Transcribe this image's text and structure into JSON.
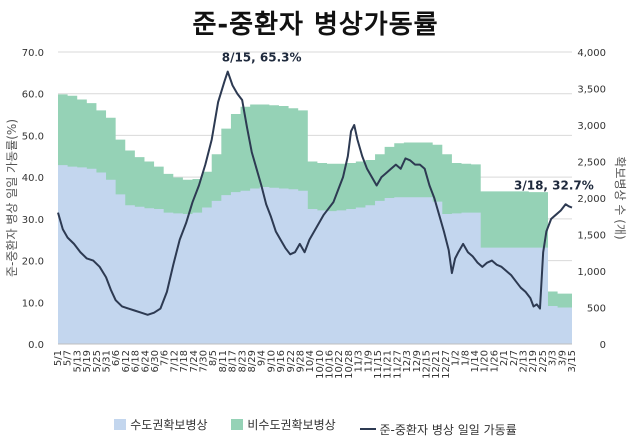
{
  "title": "준-중환자 병상가동률",
  "legend": {
    "capital": "수도권확보병상",
    "noncapital": "비수도권확보병상",
    "rate": "준-중환자 병상 일일 가동률"
  },
  "colors": {
    "capital": "#c3d6ee",
    "noncapital": "#95d2b6",
    "rate": "#2d3a52",
    "grid": "#d9d9d9"
  },
  "chart_data": {
    "type": "area",
    "title": "준-중환자 병상가동률",
    "ylabel_left": "준-중환자 병상 일일 가동률(%)",
    "ylabel_right": "확보병상 수 (개)",
    "ylim_left": [
      0,
      70
    ],
    "ylim_right": [
      0,
      4000
    ],
    "left_ticks": [
      "0.0",
      "10.0",
      "20.0",
      "30.0",
      "40.0",
      "50.0",
      "60.0",
      "70.0"
    ],
    "right_ticks": [
      "0",
      "500",
      "1,000",
      "1,500",
      "2,000",
      "2,500",
      "3,000",
      "3,500",
      "4,000"
    ],
    "x_labels": [
      "5/1",
      "5/7",
      "5/13",
      "5/19",
      "5/25",
      "5/31",
      "6/6",
      "6/12",
      "6/18",
      "6/24",
      "6/30",
      "7/6",
      "7/12",
      "7/18",
      "7/24",
      "7/30",
      "8/5",
      "8/11",
      "8/17",
      "8/23",
      "8/29",
      "9/4",
      "9/10",
      "9/16",
      "9/22",
      "9/28",
      "10/4",
      "10/10",
      "10/16",
      "10/22",
      "10/28",
      "11/3",
      "11/9",
      "11/15",
      "11/21",
      "11/27",
      "12/3",
      "12/9",
      "12/15",
      "12/21",
      "12/27",
      "1/2",
      "1/8",
      "1/14",
      "1/20",
      "1/26",
      "2/1",
      "2/7",
      "2/13",
      "2/19",
      "2/25",
      "3/3",
      "3/9",
      "3/15"
    ],
    "day_count": 321,
    "annotations": [
      {
        "label": "8/15, 65.3%",
        "day": 106,
        "value": 65.3
      },
      {
        "label": "3/18, 32.7%",
        "day": 321,
        "value": 32.7
      }
    ],
    "series": [
      {
        "name": "수도권확보병상",
        "axis": "right",
        "points": [
          [
            0,
            2450
          ],
          [
            6,
            2430
          ],
          [
            12,
            2420
          ],
          [
            18,
            2400
          ],
          [
            24,
            2350
          ],
          [
            30,
            2250
          ],
          [
            36,
            2050
          ],
          [
            42,
            1900
          ],
          [
            48,
            1880
          ],
          [
            54,
            1860
          ],
          [
            60,
            1850
          ],
          [
            66,
            1800
          ],
          [
            72,
            1790
          ],
          [
            78,
            1780
          ],
          [
            84,
            1800
          ],
          [
            90,
            1870
          ],
          [
            96,
            1960
          ],
          [
            102,
            2040
          ],
          [
            108,
            2080
          ],
          [
            114,
            2100
          ],
          [
            120,
            2130
          ],
          [
            126,
            2150
          ],
          [
            132,
            2140
          ],
          [
            138,
            2130
          ],
          [
            144,
            2120
          ],
          [
            150,
            2100
          ],
          [
            156,
            1850
          ],
          [
            162,
            1830
          ],
          [
            168,
            1820
          ],
          [
            174,
            1830
          ],
          [
            180,
            1850
          ],
          [
            186,
            1870
          ],
          [
            192,
            1900
          ],
          [
            198,
            1960
          ],
          [
            204,
            2000
          ],
          [
            210,
            2010
          ],
          [
            216,
            2010
          ],
          [
            222,
            2010
          ],
          [
            228,
            2010
          ],
          [
            234,
            1950
          ],
          [
            240,
            1780
          ],
          [
            246,
            1790
          ],
          [
            252,
            1800
          ],
          [
            258,
            1800
          ],
          [
            264,
            1320
          ],
          [
            270,
            1320
          ],
          [
            276,
            1320
          ],
          [
            282,
            1320
          ],
          [
            288,
            1320
          ],
          [
            294,
            1320
          ],
          [
            300,
            1320
          ],
          [
            304,
            1320
          ],
          [
            306,
            520
          ],
          [
            312,
            500
          ],
          [
            321,
            490
          ]
        ]
      },
      {
        "name": "비수도권확보병상",
        "axis": "right",
        "points": [
          [
            0,
            3420
          ],
          [
            6,
            3400
          ],
          [
            12,
            3350
          ],
          [
            18,
            3300
          ],
          [
            24,
            3200
          ],
          [
            30,
            3100
          ],
          [
            36,
            2800
          ],
          [
            42,
            2650
          ],
          [
            48,
            2560
          ],
          [
            54,
            2500
          ],
          [
            60,
            2430
          ],
          [
            66,
            2330
          ],
          [
            72,
            2280
          ],
          [
            78,
            2250
          ],
          [
            84,
            2260
          ],
          [
            90,
            2360
          ],
          [
            96,
            2600
          ],
          [
            102,
            2950
          ],
          [
            108,
            3150
          ],
          [
            114,
            3250
          ],
          [
            120,
            3280
          ],
          [
            126,
            3280
          ],
          [
            132,
            3270
          ],
          [
            138,
            3260
          ],
          [
            144,
            3230
          ],
          [
            150,
            3200
          ],
          [
            156,
            2500
          ],
          [
            162,
            2480
          ],
          [
            168,
            2470
          ],
          [
            174,
            2470
          ],
          [
            180,
            2480
          ],
          [
            186,
            2500
          ],
          [
            192,
            2520
          ],
          [
            198,
            2600
          ],
          [
            204,
            2700
          ],
          [
            210,
            2750
          ],
          [
            216,
            2760
          ],
          [
            222,
            2760
          ],
          [
            228,
            2760
          ],
          [
            234,
            2730
          ],
          [
            240,
            2600
          ],
          [
            246,
            2480
          ],
          [
            252,
            2470
          ],
          [
            258,
            2460
          ],
          [
            264,
            2090
          ],
          [
            270,
            2090
          ],
          [
            276,
            2090
          ],
          [
            282,
            2090
          ],
          [
            288,
            2090
          ],
          [
            294,
            2080
          ],
          [
            300,
            2080
          ],
          [
            304,
            2080
          ],
          [
            306,
            720
          ],
          [
            312,
            690
          ],
          [
            321,
            680
          ]
        ]
      },
      {
        "name": "준-중환자 병상 일일 가동률",
        "axis": "left",
        "points": [
          [
            0,
            31.5
          ],
          [
            3,
            27.5
          ],
          [
            6,
            25.5
          ],
          [
            10,
            24
          ],
          [
            14,
            22
          ],
          [
            18,
            20.5
          ],
          [
            22,
            20
          ],
          [
            26,
            18.5
          ],
          [
            30,
            16
          ],
          [
            33,
            13
          ],
          [
            36,
            10.5
          ],
          [
            40,
            9
          ],
          [
            44,
            8.5
          ],
          [
            48,
            8
          ],
          [
            52,
            7.5
          ],
          [
            56,
            7
          ],
          [
            60,
            7.5
          ],
          [
            64,
            8.5
          ],
          [
            68,
            12.5
          ],
          [
            72,
            19
          ],
          [
            76,
            25
          ],
          [
            80,
            29
          ],
          [
            84,
            34
          ],
          [
            88,
            38
          ],
          [
            92,
            43
          ],
          [
            96,
            49
          ],
          [
            100,
            58
          ],
          [
            104,
            63
          ],
          [
            106,
            65.3
          ],
          [
            109,
            62
          ],
          [
            112,
            60
          ],
          [
            115,
            58.5
          ],
          [
            118,
            52
          ],
          [
            121,
            46
          ],
          [
            124,
            42
          ],
          [
            127,
            38
          ],
          [
            130,
            33.5
          ],
          [
            133,
            30.5
          ],
          [
            136,
            27
          ],
          [
            139,
            25
          ],
          [
            142,
            23
          ],
          [
            145,
            21.5
          ],
          [
            148,
            22
          ],
          [
            151,
            24
          ],
          [
            154,
            22
          ],
          [
            157,
            25
          ],
          [
            160,
            27
          ],
          [
            163,
            29
          ],
          [
            166,
            31
          ],
          [
            169,
            32.5
          ],
          [
            172,
            34
          ],
          [
            175,
            37
          ],
          [
            178,
            40
          ],
          [
            181,
            45
          ],
          [
            183,
            51
          ],
          [
            185,
            52.5
          ],
          [
            187,
            49
          ],
          [
            190,
            45
          ],
          [
            193,
            42
          ],
          [
            196,
            40
          ],
          [
            199,
            38
          ],
          [
            202,
            40
          ],
          [
            205,
            41
          ],
          [
            208,
            42
          ],
          [
            211,
            43
          ],
          [
            214,
            42
          ],
          [
            217,
            44.5
          ],
          [
            220,
            44
          ],
          [
            223,
            43
          ],
          [
            226,
            43
          ],
          [
            229,
            42
          ],
          [
            232,
            38
          ],
          [
            235,
            35
          ],
          [
            238,
            31
          ],
          [
            241,
            27
          ],
          [
            244,
            22.5
          ],
          [
            246,
            17
          ],
          [
            248,
            20.5
          ],
          [
            250,
            22
          ],
          [
            253,
            24
          ],
          [
            256,
            22
          ],
          [
            259,
            21
          ],
          [
            262,
            19.5
          ],
          [
            265,
            18.5
          ],
          [
            268,
            19.5
          ],
          [
            271,
            20
          ],
          [
            274,
            19
          ],
          [
            277,
            18.5
          ],
          [
            280,
            17.5
          ],
          [
            283,
            16.5
          ],
          [
            286,
            15
          ],
          [
            289,
            13.5
          ],
          [
            292,
            12.5
          ],
          [
            295,
            11
          ],
          [
            297,
            9
          ],
          [
            299,
            9.5
          ],
          [
            301,
            8.5
          ],
          [
            303,
            22
          ],
          [
            305,
            27
          ],
          [
            308,
            30
          ],
          [
            311,
            31
          ],
          [
            314,
            32
          ],
          [
            317,
            33.5
          ],
          [
            319,
            33
          ],
          [
            321,
            32.7
          ]
        ]
      }
    ]
  }
}
